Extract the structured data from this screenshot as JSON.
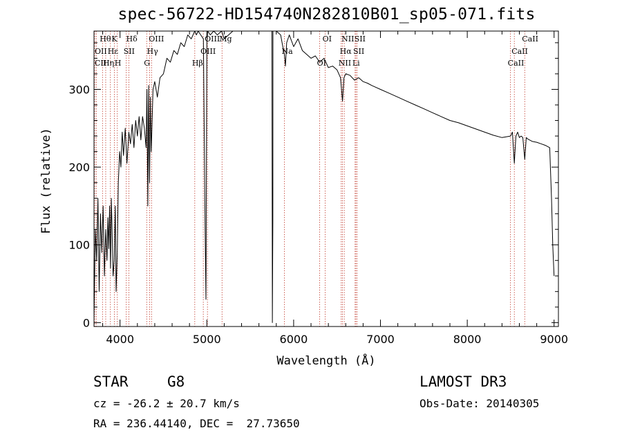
{
  "figure": {
    "title": "spec-56722-HD154740N282810B01_sp05-071.fits",
    "object_class": "STAR",
    "subclass": "G8",
    "survey": "LAMOST DR3",
    "redshift_text": "cz = -26.2 ± 20.7 km/s",
    "obs_date_text": "Obs-Date: 20140305",
    "coords_text": "RA = 236.44140, DEC =  27.73650"
  },
  "chart_data": {
    "type": "line",
    "title": "spec-56722-HD154740N282810B01_sp05-071.fits",
    "xlabel": "Wavelength (Å)",
    "ylabel": "Flux (relative)",
    "xlim": [
      3700,
      9050
    ],
    "ylim": [
      -5,
      375
    ],
    "xticks": [
      4000,
      5000,
      6000,
      7000,
      8000,
      9000
    ],
    "yticks": [
      0,
      100,
      200,
      300
    ],
    "grid": false,
    "series": [
      {
        "name": "spectrum",
        "x": [
          3700,
          3715,
          3730,
          3745,
          3760,
          3775,
          3790,
          3805,
          3820,
          3835,
          3850,
          3860,
          3870,
          3880,
          3890,
          3900,
          3910,
          3920,
          3933,
          3945,
          3955,
          3968,
          3980,
          3995,
          4010,
          4025,
          4040,
          4060,
          4080,
          4101,
          4120,
          4140,
          4160,
          4180,
          4200,
          4220,
          4240,
          4260,
          4280,
          4300,
          4310,
          4320,
          4330,
          4340,
          4350,
          4360,
          4380,
          4400,
          4430,
          4460,
          4500,
          4540,
          4580,
          4620,
          4660,
          4700,
          4740,
          4780,
          4820,
          4861,
          4880,
          4900,
          4930,
          4960,
          4980,
          4990,
          5000,
          5010,
          5040,
          5080,
          5120,
          5170,
          5200,
          5250,
          5300,
          5400,
          5500,
          5600,
          5700,
          5750,
          5755,
          5760,
          5762,
          5800,
          5850,
          5875,
          5893,
          5905,
          5920,
          5950,
          6000,
          6050,
          6100,
          6150,
          6200,
          6250,
          6300,
          6350,
          6400,
          6450,
          6500,
          6540,
          6563,
          6580,
          6600,
          6650,
          6700,
          6750,
          6800,
          6850,
          6900,
          7000,
          7100,
          7200,
          7300,
          7400,
          7500,
          7600,
          7700,
          7800,
          7900,
          8000,
          8100,
          8200,
          8300,
          8400,
          8498,
          8520,
          8542,
          8560,
          8580,
          8600,
          8620,
          8640,
          8662,
          8680,
          8700,
          8750,
          8800,
          8850,
          8900,
          8950,
          8970,
          8985,
          9000
        ],
        "y": [
          5,
          120,
          80,
          160,
          40,
          140,
          90,
          150,
          60,
          120,
          80,
          135,
          95,
          150,
          70,
          160,
          110,
          60,
          80,
          150,
          40,
          90,
          180,
          220,
          200,
          245,
          215,
          250,
          205,
          245,
          230,
          255,
          225,
          260,
          240,
          265,
          235,
          265,
          250,
          225,
          300,
          150,
          305,
          180,
          290,
          220,
          300,
          310,
          290,
          315,
          320,
          340,
          335,
          350,
          345,
          360,
          355,
          370,
          365,
          375,
          370,
          375,
          370,
          365,
          120,
          30,
          360,
          375,
          370,
          375,
          370,
          375,
          365,
          370,
          375,
          375,
          375,
          375,
          375,
          375,
          0,
          130,
          375,
          375,
          370,
          355,
          345,
          330,
          360,
          370,
          355,
          365,
          350,
          345,
          340,
          343,
          335,
          340,
          328,
          330,
          325,
          315,
          285,
          315,
          320,
          318,
          312,
          315,
          310,
          308,
          305,
          300,
          295,
          290,
          285,
          280,
          275,
          270,
          265,
          260,
          257,
          253,
          249,
          245,
          241,
          238,
          240,
          245,
          205,
          240,
          245,
          238,
          240,
          238,
          210,
          238,
          236,
          233,
          232,
          230,
          228,
          225,
          160,
          100,
          60
        ]
      }
    ],
    "line_markers": [
      {
        "label": "Hθ",
        "x": 3798
      },
      {
        "label": "OII",
        "x": 3727
      },
      {
        "label": "CII",
        "x": 3710
      },
      {
        "label": "K",
        "x": 3934
      },
      {
        "label": "Hε",
        "x": 3889
      },
      {
        "label": "Hη",
        "x": 3835
      },
      {
        "label": "Hδ",
        "x": 4102
      },
      {
        "label": "SII",
        "x": 4072
      },
      {
        "label": "H",
        "x": 3969
      },
      {
        "label": "OIII",
        "x": 4363
      },
      {
        "label": "Hγ",
        "x": 4341
      },
      {
        "label": "G",
        "x": 4307
      },
      {
        "label": "OIII",
        "x": 5007
      },
      {
        "label": "OIII",
        "x": 4959
      },
      {
        "label": "Hβ",
        "x": 4861
      },
      {
        "label": "Mg",
        "x": 5175
      },
      {
        "label": "Na",
        "x": 5893
      },
      {
        "label": "OI",
        "x": 6300
      },
      {
        "label": "OI",
        "x": 6364
      },
      {
        "label": "Hα",
        "x": 6563
      },
      {
        "label": "NII",
        "x": 6548
      },
      {
        "label": "NII",
        "x": 6583
      },
      {
        "label": "SII",
        "x": 6717
      },
      {
        "label": "Li",
        "x": 6708
      },
      {
        "label": "SII",
        "x": 6731
      },
      {
        "label": "CaII",
        "x": 8542
      },
      {
        "label": "CaII",
        "x": 8498
      },
      {
        "label": "CaII",
        "x": 8662
      }
    ]
  }
}
